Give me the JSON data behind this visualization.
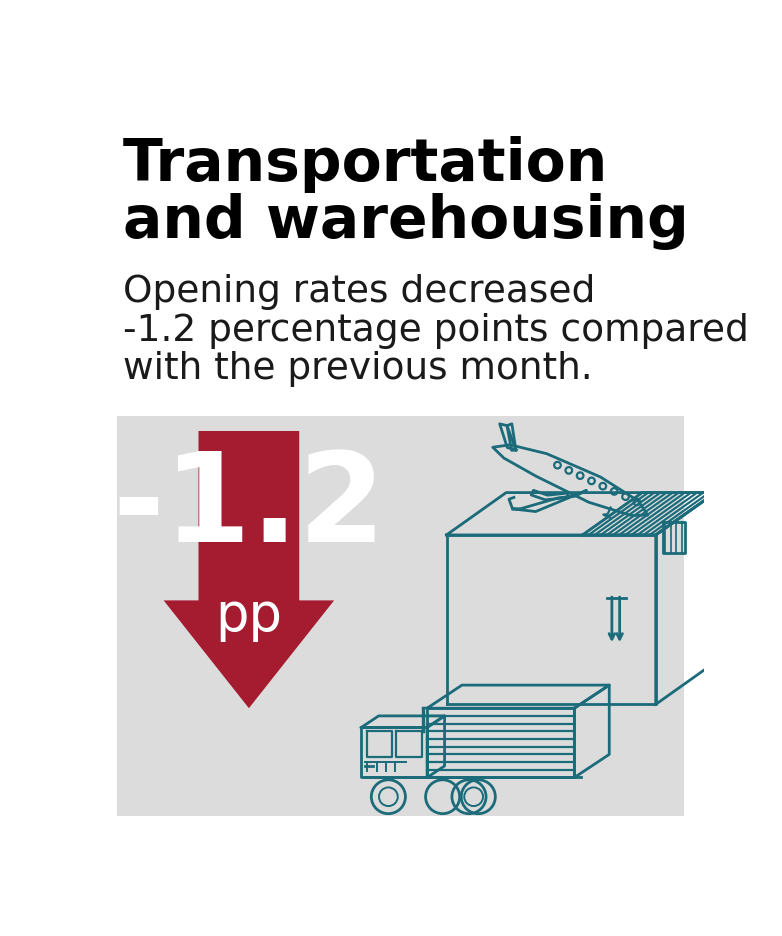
{
  "title_line1": "Transportation",
  "title_line2": "and warehousing",
  "subtitle_line1": "Opening rates decreased",
  "subtitle_line2": "-1.2 percentage points compared",
  "subtitle_line3": "with the previous month.",
  "value": "-1.2",
  "unit": "pp",
  "bg_color": "#dcdcdc",
  "arrow_color": "#a51c30",
  "text_color_white": "#ffffff",
  "title_color": "#000000",
  "subtitle_color": "#1a1a1a",
  "icon_color": "#1b6b7b",
  "fig_bg": "#ffffff",
  "title_fontsize": 42,
  "subtitle_fontsize": 27,
  "value_fontsize": 90,
  "unit_fontsize": 38
}
